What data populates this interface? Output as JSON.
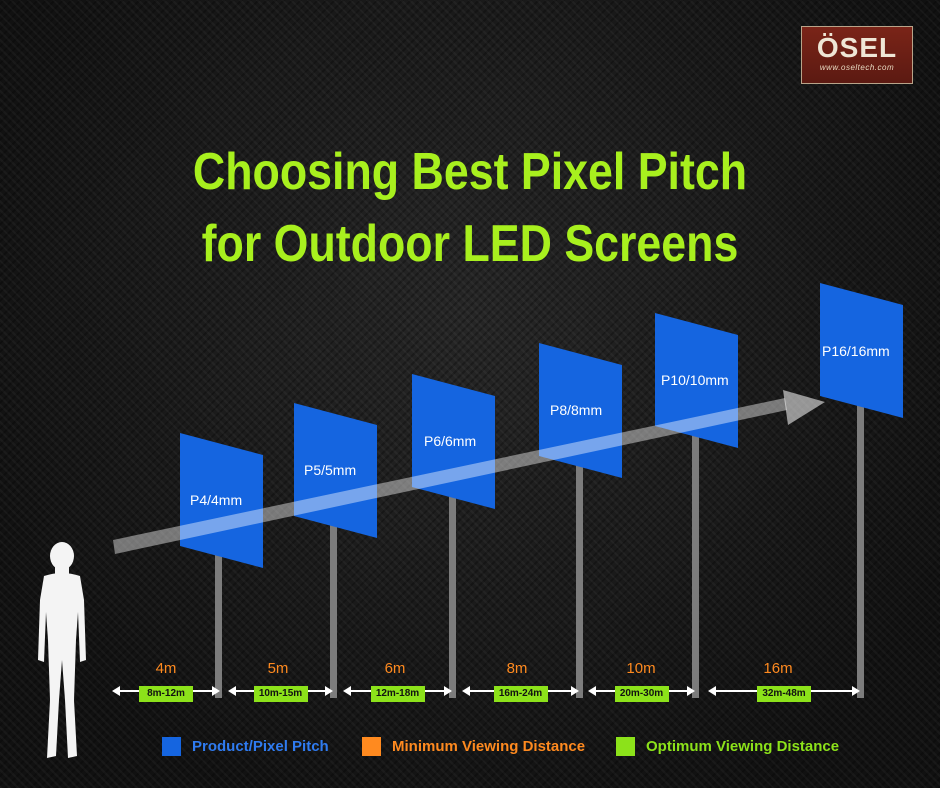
{
  "logo": {
    "name": "ÖSEL",
    "url": "www.oseltech.com"
  },
  "title": {
    "line1": "Choosing Best Pixel Pitch",
    "line2": "for Outdoor LED Screens"
  },
  "screens": [
    {
      "pitch": "P4/4mm",
      "min": "4m",
      "optimum": "8m-12m"
    },
    {
      "pitch": "P5/5mm",
      "min": "5m",
      "optimum": "10m-15m"
    },
    {
      "pitch": "P6/6mm",
      "min": "6m",
      "optimum": "12m-18m"
    },
    {
      "pitch": "P8/8mm",
      "min": "8m",
      "optimum": "16m-24m"
    },
    {
      "pitch": "P10/10mm",
      "min": "10m",
      "optimum": "20m-30m"
    },
    {
      "pitch": "P16/16mm",
      "min": "16m",
      "optimum": "32m-48m"
    }
  ],
  "legend": [
    {
      "label": "Product/Pixel Pitch",
      "color": "#1565e0"
    },
    {
      "label": "Minimum Viewing Distance",
      "color": "#ff8a1f"
    },
    {
      "label": "Optimum Viewing Distance",
      "color": "#8ce21a"
    }
  ],
  "icons": {
    "person": "person-silhouette-icon",
    "arrow": "trend-arrow-icon"
  }
}
